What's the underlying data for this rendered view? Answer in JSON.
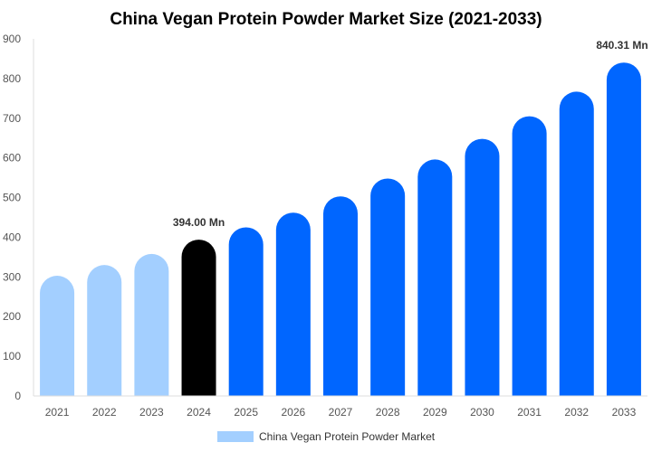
{
  "chart_data": {
    "type": "bar",
    "title": "China Vegan Protein Powder Market Size (2021-2033)",
    "xlabel": "",
    "ylabel": "",
    "categories": [
      "2021",
      "2022",
      "2023",
      "2024",
      "2025",
      "2026",
      "2027",
      "2028",
      "2029",
      "2030",
      "2031",
      "2032",
      "2033"
    ],
    "series": [
      {
        "name": "China Vegan Protein Powder Market",
        "values": [
          303,
          330,
          358,
          394.0,
          425,
          462,
          503,
          548,
          596,
          648,
          705,
          767,
          840.31
        ]
      }
    ],
    "ylim": [
      0,
      900
    ],
    "yticks": [
      0,
      100,
      200,
      300,
      400,
      500,
      600,
      700,
      800,
      900
    ],
    "grid": false,
    "legend_position": "bottom",
    "data_labels": [
      {
        "category": "2024",
        "text": "394.00 Mn"
      },
      {
        "category": "2033",
        "text": "840.31 Mn"
      }
    ],
    "colors": {
      "historical": "#a3cfff",
      "base_year": "#000000",
      "forecast": "#0066ff",
      "legend": "#a3cfff"
    },
    "bar_color_groups": [
      "historical",
      "historical",
      "historical",
      "base_year",
      "forecast",
      "forecast",
      "forecast",
      "forecast",
      "forecast",
      "forecast",
      "forecast",
      "forecast",
      "forecast"
    ]
  }
}
